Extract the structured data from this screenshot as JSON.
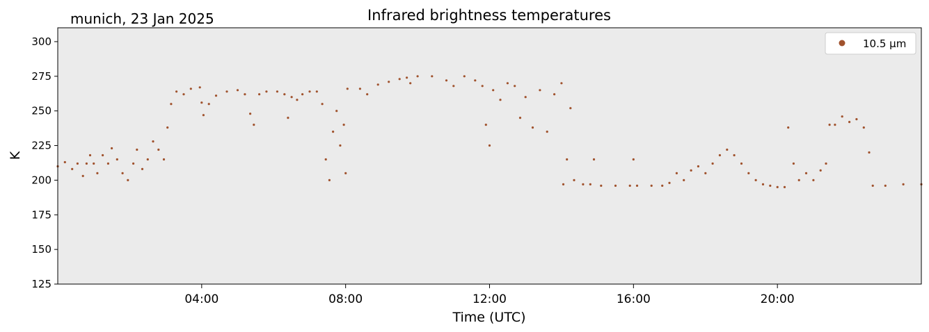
{
  "chart_data": {
    "type": "scatter",
    "title": "Infrared brightness temperatures",
    "subtitle": "munich, 23 Jan 2025",
    "xlabel": "Time (UTC)",
    "ylabel": "K",
    "xlim_hours": [
      0,
      24
    ],
    "ylim": [
      125,
      310
    ],
    "yticks": [
      125,
      150,
      175,
      200,
      225,
      250,
      275,
      300
    ],
    "xticks": [
      {
        "hour": 4,
        "label": "04:00"
      },
      {
        "hour": 8,
        "label": "08:00"
      },
      {
        "hour": 12,
        "label": "12:00"
      },
      {
        "hour": 16,
        "label": "16:00"
      },
      {
        "hour": 20,
        "label": "20:00"
      }
    ],
    "grid": false,
    "legend_position": "top-right",
    "background_color": "#ebebeb",
    "series": [
      {
        "name": "10.5 µm",
        "color": "#a0522d",
        "points": [
          [
            0.0,
            210
          ],
          [
            0.2,
            213
          ],
          [
            0.4,
            208
          ],
          [
            0.55,
            212
          ],
          [
            0.7,
            203
          ],
          [
            0.8,
            212
          ],
          [
            0.9,
            218
          ],
          [
            1.0,
            212
          ],
          [
            1.1,
            205
          ],
          [
            1.25,
            218
          ],
          [
            1.4,
            212
          ],
          [
            1.5,
            223
          ],
          [
            1.65,
            215
          ],
          [
            1.8,
            205
          ],
          [
            1.95,
            200
          ],
          [
            2.1,
            212
          ],
          [
            2.2,
            222
          ],
          [
            2.35,
            208
          ],
          [
            2.5,
            215
          ],
          [
            2.65,
            228
          ],
          [
            2.8,
            222
          ],
          [
            2.95,
            215
          ],
          [
            3.05,
            238
          ],
          [
            3.15,
            255
          ],
          [
            3.3,
            264
          ],
          [
            3.5,
            262
          ],
          [
            3.7,
            266
          ],
          [
            3.95,
            267
          ],
          [
            4.0,
            256
          ],
          [
            4.05,
            247
          ],
          [
            4.2,
            255
          ],
          [
            4.4,
            261
          ],
          [
            4.7,
            264
          ],
          [
            5.0,
            265
          ],
          [
            5.2,
            262
          ],
          [
            5.35,
            248
          ],
          [
            5.45,
            240
          ],
          [
            5.6,
            262
          ],
          [
            5.8,
            264
          ],
          [
            6.1,
            264
          ],
          [
            6.3,
            262
          ],
          [
            6.4,
            245
          ],
          [
            6.5,
            260
          ],
          [
            6.65,
            258
          ],
          [
            6.8,
            262
          ],
          [
            7.0,
            264
          ],
          [
            7.2,
            264
          ],
          [
            7.35,
            255
          ],
          [
            7.45,
            215
          ],
          [
            7.55,
            200
          ],
          [
            7.65,
            235
          ],
          [
            7.75,
            250
          ],
          [
            7.85,
            225
          ],
          [
            7.95,
            240
          ],
          [
            8.0,
            205
          ],
          [
            8.05,
            266
          ],
          [
            8.4,
            266
          ],
          [
            8.6,
            262
          ],
          [
            8.9,
            269
          ],
          [
            9.2,
            271
          ],
          [
            9.5,
            273
          ],
          [
            9.7,
            274
          ],
          [
            9.8,
            270
          ],
          [
            10.0,
            275
          ],
          [
            10.4,
            275
          ],
          [
            10.8,
            272
          ],
          [
            11.0,
            268
          ],
          [
            11.3,
            275
          ],
          [
            11.6,
            272
          ],
          [
            11.8,
            268
          ],
          [
            11.9,
            240
          ],
          [
            12.0,
            225
          ],
          [
            12.1,
            265
          ],
          [
            12.3,
            258
          ],
          [
            12.5,
            270
          ],
          [
            12.7,
            268
          ],
          [
            12.85,
            245
          ],
          [
            13.0,
            260
          ],
          [
            13.2,
            238
          ],
          [
            13.4,
            265
          ],
          [
            13.6,
            235
          ],
          [
            13.8,
            262
          ],
          [
            14.0,
            270
          ],
          [
            14.05,
            197
          ],
          [
            14.15,
            215
          ],
          [
            14.25,
            252
          ],
          [
            14.35,
            200
          ],
          [
            14.6,
            197
          ],
          [
            14.8,
            197
          ],
          [
            14.9,
            215
          ],
          [
            15.1,
            196
          ],
          [
            15.5,
            196
          ],
          [
            15.9,
            196
          ],
          [
            16.0,
            215
          ],
          [
            16.1,
            196
          ],
          [
            16.5,
            196
          ],
          [
            16.8,
            196
          ],
          [
            17.0,
            198
          ],
          [
            17.2,
            205
          ],
          [
            17.4,
            200
          ],
          [
            17.6,
            207
          ],
          [
            17.8,
            210
          ],
          [
            18.0,
            205
          ],
          [
            18.2,
            212
          ],
          [
            18.4,
            218
          ],
          [
            18.6,
            222
          ],
          [
            18.8,
            218
          ],
          [
            19.0,
            212
          ],
          [
            19.2,
            205
          ],
          [
            19.4,
            200
          ],
          [
            19.6,
            197
          ],
          [
            19.8,
            196
          ],
          [
            20.0,
            195
          ],
          [
            20.2,
            195
          ],
          [
            20.3,
            238
          ],
          [
            20.45,
            212
          ],
          [
            20.6,
            200
          ],
          [
            20.8,
            205
          ],
          [
            21.0,
            200
          ],
          [
            21.2,
            207
          ],
          [
            21.35,
            212
          ],
          [
            21.45,
            240
          ],
          [
            21.6,
            240
          ],
          [
            21.8,
            246
          ],
          [
            22.0,
            242
          ],
          [
            22.2,
            244
          ],
          [
            22.4,
            238
          ],
          [
            22.55,
            220
          ],
          [
            22.65,
            196
          ],
          [
            23.0,
            196
          ],
          [
            23.5,
            197
          ],
          [
            24.0,
            197
          ]
        ]
      }
    ]
  }
}
